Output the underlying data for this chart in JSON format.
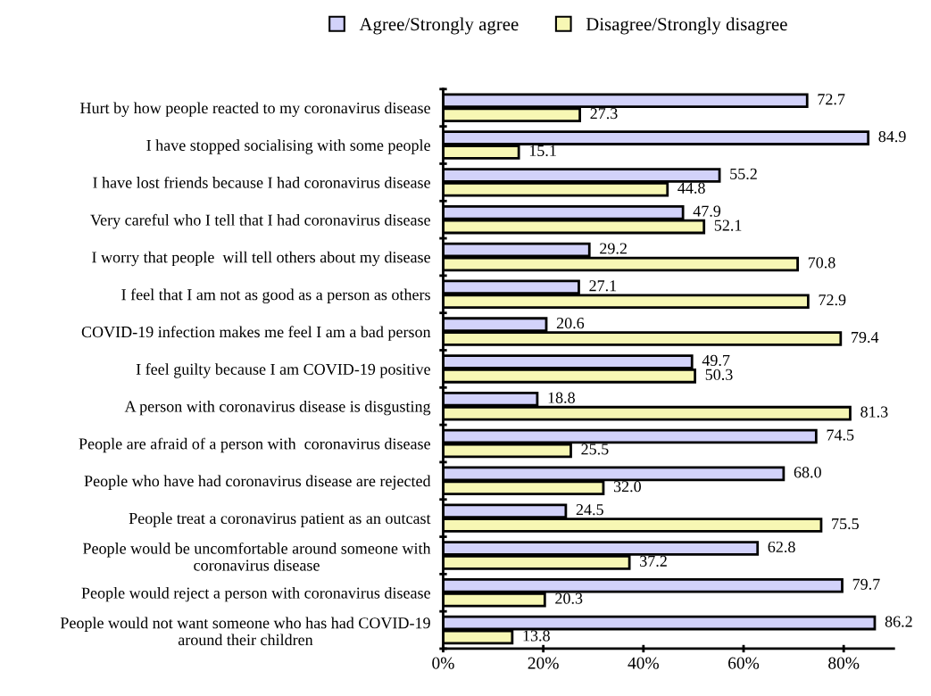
{
  "chart_data": {
    "type": "bar",
    "orientation": "horizontal",
    "categories": [
      "Hurt by how people reacted to my coronavirus disease",
      "I have stopped socialising with some people",
      "I have lost friends because I had coronavirus disease",
      "Very careful who I tell that I had coronavirus disease",
      "I worry that people  will tell others about my disease",
      "I feel that I am not as good as a person as others",
      "COVID-19 infection makes me feel I am a bad person",
      "I feel guilty because I am COVID-19 positive",
      "A person with coronavirus disease is disgusting",
      "People are afraid of a person with  coronavirus disease",
      "People who have had coronavirus disease are rejected",
      "People treat a coronavirus patient as an outcast",
      "People would be uncomfortable around someone with\ncoronavirus disease",
      "People would reject a person with coronavirus disease",
      "People would not want someone who has had COVID-19\naround their children"
    ],
    "series": [
      {
        "name": "Agree/Strongly agree",
        "color": "#d2d2fa",
        "values": [
          72.7,
          84.9,
          55.2,
          47.9,
          29.2,
          27.1,
          20.6,
          49.7,
          18.8,
          74.5,
          68.0,
          24.5,
          62.8,
          79.7,
          86.2
        ],
        "value_labels": [
          "72.7",
          "84.9",
          "55.2",
          "47.9",
          "29.2",
          "27.1",
          "20.6",
          "49.7",
          "18.8",
          "74.5",
          "68.0",
          "24.5",
          "62.8",
          "79.7",
          "86.2"
        ]
      },
      {
        "name": "Disagree/Strongly disagree",
        "color": "#f7f7b4",
        "values": [
          27.3,
          15.1,
          44.8,
          52.1,
          70.8,
          72.9,
          79.4,
          50.3,
          81.3,
          25.5,
          32.0,
          75.5,
          37.2,
          20.3,
          13.8
        ],
        "value_labels": [
          "27.3",
          "15.1",
          "44.8",
          "52.1",
          "70.8",
          "72.9",
          "79.4",
          "50.3",
          "81.3",
          "25.5",
          "32.0",
          "75.5",
          "37.2",
          "20.3",
          "13.8"
        ]
      }
    ],
    "xlim": [
      0,
      90
    ],
    "xticks": [
      {
        "value": 0,
        "label": "0%"
      },
      {
        "value": 20,
        "label": "20%"
      },
      {
        "value": 40,
        "label": "40%"
      },
      {
        "value": 60,
        "label": "60%"
      },
      {
        "value": 80,
        "label": "80%"
      }
    ],
    "grid": false,
    "legend": "top"
  }
}
